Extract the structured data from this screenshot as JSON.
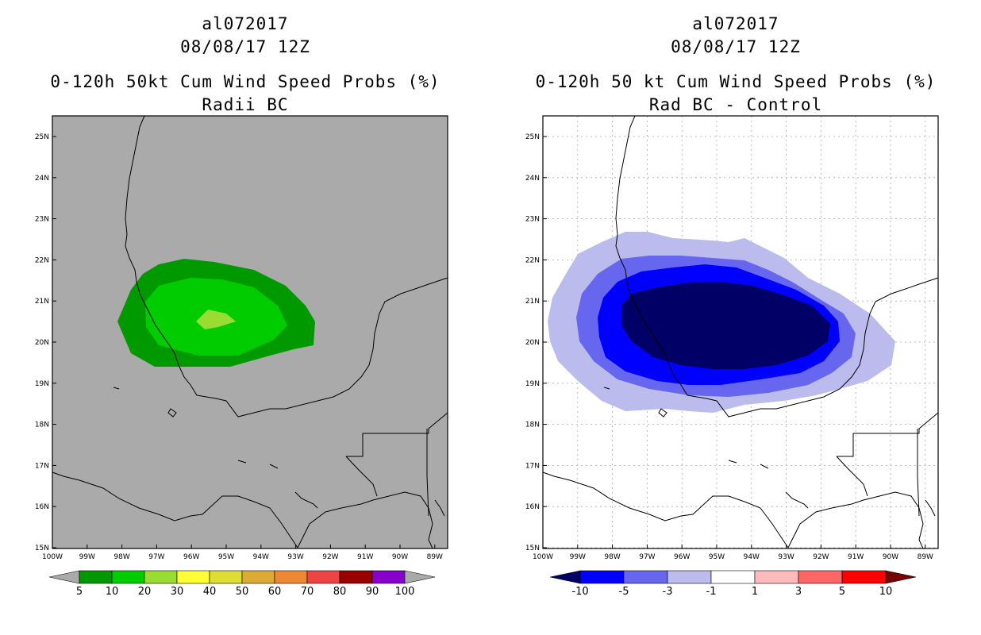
{
  "panels": [
    {
      "id": "left",
      "title_line1": "al072017",
      "title_line2": "08/08/17 12Z",
      "title_line3": "0-120h 50kt Cum Wind Speed Probs (%)",
      "title_line4": "Radii BC",
      "background_color": "#aaaaaa",
      "lat_labels": [
        "25N",
        "24N",
        "23N",
        "22N",
        "21N",
        "20N",
        "19N",
        "18N",
        "17N",
        "16N",
        "15N"
      ],
      "lon_labels": [
        "100W",
        "99W",
        "98W",
        "97W",
        "96W",
        "95W",
        "94W",
        "93W",
        "92W",
        "91W",
        "90W",
        "89W"
      ],
      "colorbar": {
        "colors": [
          "#009900",
          "#00cc00",
          "#99dd33",
          "#ffff33",
          "#dddd33",
          "#ddaa33",
          "#ee8833",
          "#ee4444",
          "#990000",
          "#8800cc"
        ],
        "labels": [
          "5",
          "10",
          "20",
          "30",
          "40",
          "50",
          "60",
          "70",
          "80",
          "90",
          "100"
        ],
        "under_color": "#aaaaaa",
        "over_color": "#aaaaaa"
      }
    },
    {
      "id": "right",
      "title_line1": "al072017",
      "title_line2": "08/08/17 12Z",
      "title_line3": "0-120h 50 kt Cum Wind Speed Probs (%)",
      "title_line4": "Rad BC - Control",
      "background_color": "#ffffff",
      "lat_labels": [
        "25N",
        "24N",
        "23N",
        "22N",
        "21N",
        "20N",
        "19N",
        "18N",
        "17N",
        "16N",
        "15N"
      ],
      "lon_labels": [
        "100W",
        "99W",
        "98W",
        "97W",
        "96W",
        "95W",
        "94W",
        "93W",
        "92W",
        "91W",
        "90W",
        "89W"
      ],
      "colorbar": {
        "colors": [
          "#0000ff",
          "#6666ee",
          "#bbbbee",
          "#ffffff",
          "#ffbbbb",
          "#ff6666",
          "#ff0000"
        ],
        "labels": [
          "-10",
          "-5",
          "-3",
          "-1",
          "1",
          "3",
          "5",
          "10"
        ],
        "under_color": "#000066",
        "over_color": "#770000"
      }
    }
  ]
}
